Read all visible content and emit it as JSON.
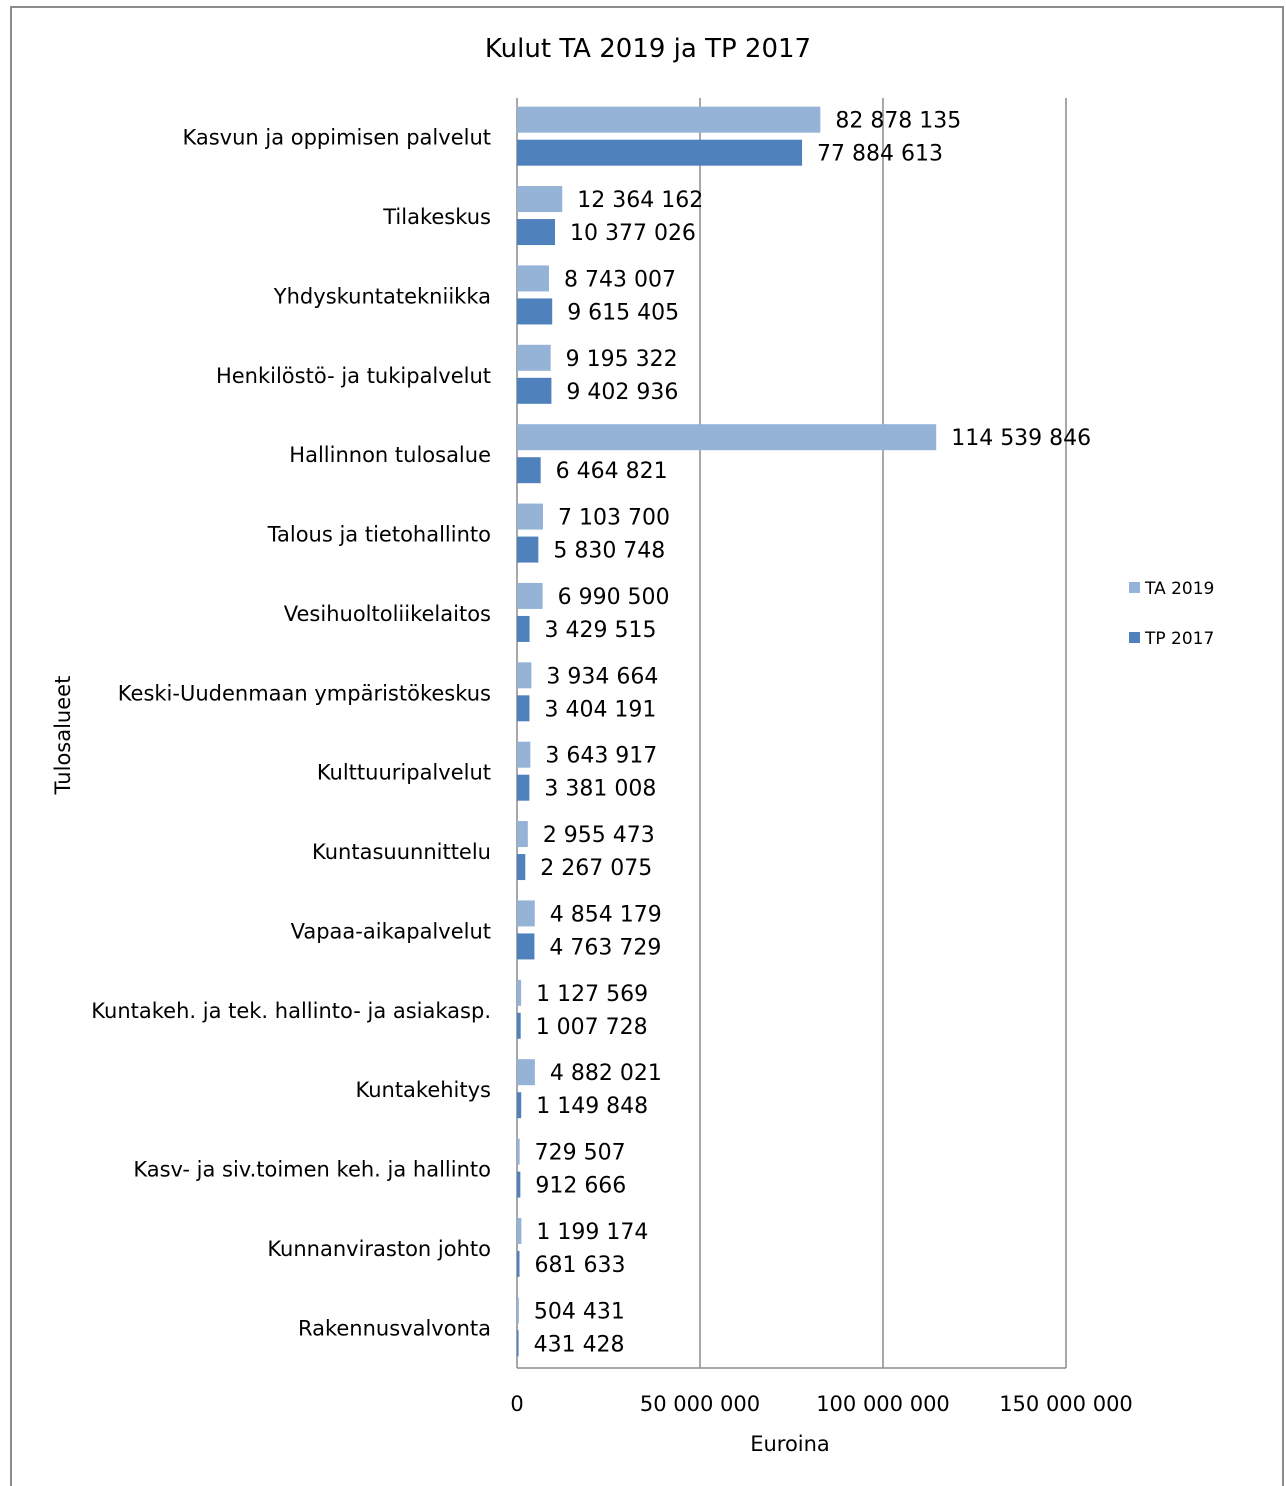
{
  "chart_data": {
    "type": "bar",
    "orientation": "horizontal",
    "title": "Kulut TA 2019 ja TP 2017",
    "xlabel": "Euroina",
    "ylabel": "Tulosalueet",
    "xlim": [
      0,
      150000000
    ],
    "x_ticks": [
      "0",
      "50 000 000",
      "100 000 000",
      "150 000 000"
    ],
    "grid": true,
    "legend_position": "right",
    "categories": [
      "Kasvun ja oppimisen palvelut",
      "Tilakeskus",
      "Yhdyskuntatekniikka",
      "Henkilöstö- ja tukipalvelut",
      "Hallinnon tulosalue",
      "Talous ja tietohallinto",
      "Vesihuoltoliikelaitos",
      "Keski-Uudenmaan ympäristökeskus",
      "Kulttuuripalvelut",
      "Kuntasuunnittelu",
      "Vapaa-aikapalvelut",
      "Kuntakeh. ja tek. hallinto- ja asiakasp.",
      "Kuntakehitys",
      "Kasv- ja siv.toimen keh. ja hallinto",
      "Kunnanviraston johto",
      "Rakennusvalvonta"
    ],
    "series": [
      {
        "name": "TA 2019",
        "color": "#95b3d7",
        "values": [
          82878135,
          12364162,
          8743007,
          9195322,
          114539846,
          7103700,
          6990500,
          3934664,
          3643917,
          2955473,
          4854179,
          1127569,
          4882021,
          729507,
          1199174,
          504431
        ],
        "labels": [
          "82 878 135",
          "12 364 162",
          "8 743 007",
          "9 195 322",
          "114 539 846",
          "7 103 700",
          "6 990 500",
          "3 934 664",
          "3 643 917",
          "2 955 473",
          "4 854 179",
          "1 127 569",
          "4 882 021",
          "729 507",
          "1 199 174",
          "504 431"
        ]
      },
      {
        "name": "TP 2017",
        "color": "#4f81bd",
        "values": [
          77884613,
          10377026,
          9615405,
          9402936,
          6464821,
          5830748,
          3429515,
          3404191,
          3381008,
          2267075,
          4763729,
          1007728,
          1149848,
          912666,
          681633,
          431428
        ],
        "labels": [
          "77 884 613",
          "10 377 026",
          "9 615 405",
          "9 402 936",
          "6 464 821",
          "5 830 748",
          "3 429 515",
          "3 404 191",
          "3 381 008",
          "2 267 075",
          "4 763 729",
          "1 007 728",
          "1 149 848",
          "912 666",
          "681 633",
          "431 428"
        ]
      }
    ]
  }
}
